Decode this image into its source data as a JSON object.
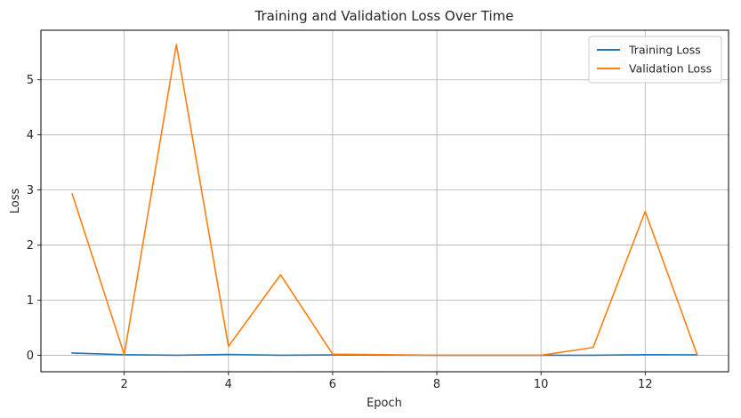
{
  "chart_data": {
    "type": "line",
    "title": "Training and Validation Loss Over Time",
    "xlabel": "Epoch",
    "ylabel": "Loss",
    "x": [
      1,
      2,
      3,
      4,
      5,
      6,
      7,
      8,
      9,
      10,
      11,
      12,
      13
    ],
    "xlim": [
      0.4,
      13.6
    ],
    "ylim": [
      -0.3,
      5.9
    ],
    "xticks": [
      2,
      4,
      6,
      8,
      10,
      12
    ],
    "yticks": [
      0,
      1,
      2,
      3,
      4,
      5
    ],
    "grid": true,
    "legend_position": "top-right",
    "series": [
      {
        "name": "Training Loss",
        "color": "#1f77b4",
        "values": [
          0.04,
          0.01,
          0.0,
          0.015,
          0.0,
          0.005,
          0.002,
          0.0,
          0.0,
          0.0,
          0.0,
          0.01,
          0.008
        ]
      },
      {
        "name": "Validation Loss",
        "color": "#ff7f0e",
        "values": [
          2.93,
          0.01,
          5.64,
          0.16,
          1.46,
          0.02,
          0.01,
          0.0,
          0.0,
          0.0,
          0.14,
          2.61,
          0.0
        ]
      }
    ]
  }
}
